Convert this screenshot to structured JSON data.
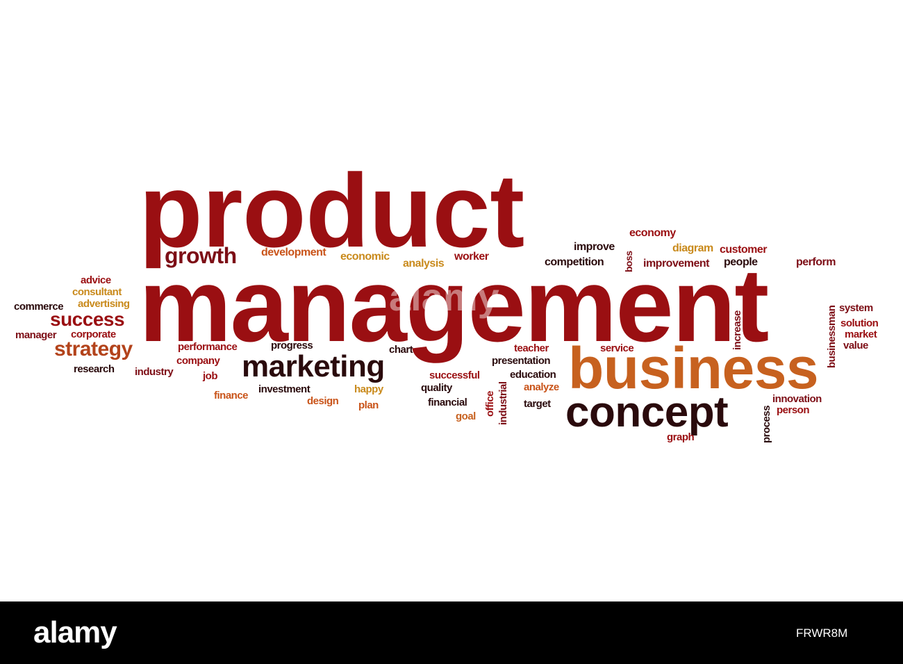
{
  "colors": {
    "background": "#ffffff",
    "primary_red": "#9a0f12",
    "dark_red": "#7d0e16",
    "near_black": "#2a0a0c",
    "rust": "#b3431b",
    "orange": "#c7611f",
    "gold": "#c98a1c",
    "footer": "#000000"
  },
  "words": {
    "product": "product",
    "management": "management",
    "business": "business",
    "concept": "concept",
    "marketing": "marketing",
    "growth": "growth",
    "success": "success",
    "strategy": "strategy",
    "development": "development",
    "economic": "economic",
    "analysis": "analysis",
    "worker": "worker",
    "improve": "improve",
    "competition": "competition",
    "boss": "boss",
    "economy": "economy",
    "diagram": "diagram",
    "customer": "customer",
    "improvement": "improvement",
    "people": "people",
    "perform": "perform",
    "advice": "advice",
    "consultant": "consultant",
    "advertising": "advertising",
    "commerce": "commerce",
    "manager": "manager",
    "corporate": "corporate",
    "research": "research",
    "industry": "industry",
    "performance": "performance",
    "progress": "progress",
    "company": "company",
    "job": "job",
    "finance": "finance",
    "investment": "investment",
    "design": "design",
    "happy": "happy",
    "plan": "plan",
    "chart": "chart",
    "successful": "successful",
    "quality": "quality",
    "financial": "financial",
    "goal": "goal",
    "office": "office",
    "industrial": "industrial",
    "teacher": "teacher",
    "presentation": "presentation",
    "education": "education",
    "analyze": "analyze",
    "target": "target",
    "service": "service",
    "increase": "increase",
    "businessman": "businessman",
    "system": "system",
    "solution": "solution",
    "market": "market",
    "value": "value",
    "process": "process",
    "innovation": "innovation",
    "person": "person",
    "graph": "graph"
  },
  "footer": {
    "brand": "alamy",
    "image_id": "FRWR8M"
  }
}
